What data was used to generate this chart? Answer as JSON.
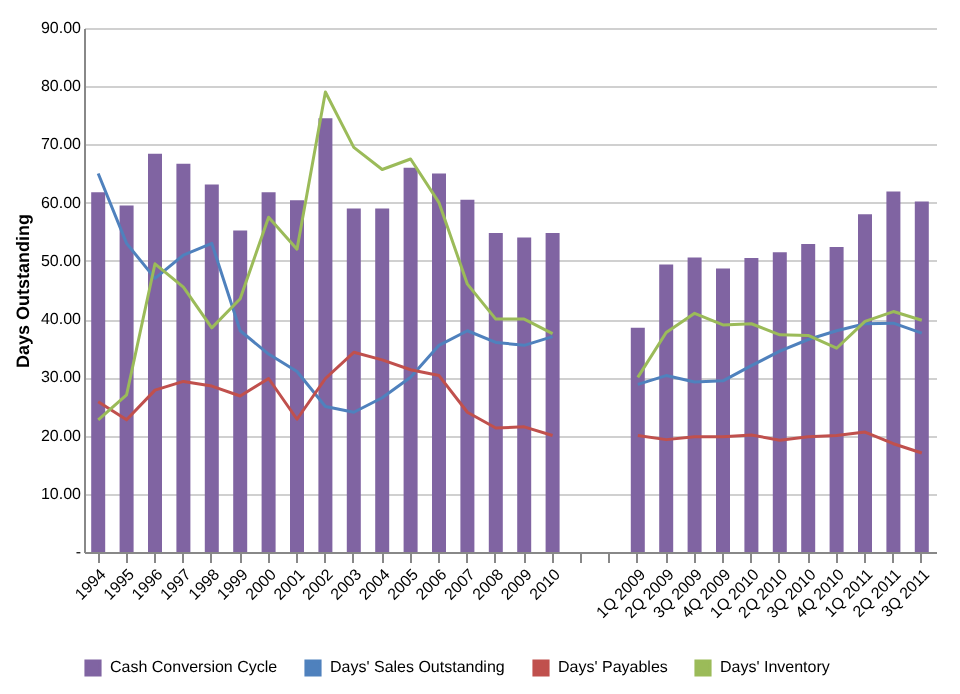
{
  "chart_data": {
    "type": "bar",
    "ylabel": "Days Outstanding",
    "categories": [
      "1994",
      "1995",
      "1996",
      "1997",
      "1998",
      "1999",
      "2000",
      "2001",
      "2002",
      "2003",
      "2004",
      "2005",
      "2006",
      "2007",
      "2008",
      "2009",
      "2010",
      null,
      null,
      "1Q 2009",
      "2Q 2009",
      "3Q 2009",
      "4Q 2009",
      "1Q 2010",
      "2Q 2010",
      "3Q 2010",
      "4Q 2010",
      "1Q 2011",
      "2Q 2011",
      "3Q 2011"
    ],
    "ylim": [
      0,
      90
    ],
    "yticks": [
      {
        "value": 0,
        "label": "-"
      },
      {
        "value": 10,
        "label": "10.00"
      },
      {
        "value": 20,
        "label": "20.00"
      },
      {
        "value": 30,
        "label": "30.00"
      },
      {
        "value": 40,
        "label": "40.00"
      },
      {
        "value": 50,
        "label": "50.00"
      },
      {
        "value": 60,
        "label": "60.00"
      },
      {
        "value": 70,
        "label": "70.00"
      },
      {
        "value": 80,
        "label": "80.00"
      },
      {
        "value": 90,
        "label": "90.00"
      }
    ],
    "grid": "y",
    "legend": "bottom",
    "series": [
      {
        "name": "Cash Conversion Cycle",
        "color": "#8064a2",
        "values": [
          61.8,
          59.5,
          68.4,
          66.7,
          63.1,
          55.2,
          61.8,
          60.4,
          74.5,
          59.0,
          59.0,
          66.0,
          65.0,
          60.5,
          54.8,
          54.0,
          54.8,
          null,
          null,
          38.5,
          49.4,
          50.6,
          48.7,
          50.5,
          51.5,
          52.9,
          52.4,
          58.0,
          61.9,
          60.2
        ]
      },
      {
        "name": "Days' Sales Outstanding",
        "type": "line",
        "color": "#4f81bd",
        "values": [
          65,
          53,
          47,
          51,
          53,
          38,
          34,
          31,
          25,
          24,
          26.5,
          30,
          35.5,
          38,
          36,
          35.5,
          37,
          null,
          null,
          28.8,
          30.3,
          29.2,
          29.4,
          32,
          34.5,
          36.5,
          38.0,
          39.2,
          39.3,
          37.6
        ]
      },
      {
        "name": "Days' Payables",
        "type": "line",
        "color": "#c0504d",
        "values": [
          25.8,
          22.7,
          27.8,
          29.3,
          28.5,
          26.8,
          29.8,
          22.8,
          29.8,
          34.3,
          33,
          31.3,
          30.3,
          24,
          21.3,
          21.5,
          20,
          null,
          null,
          20.0,
          19.3,
          19.8,
          19.8,
          20.1,
          19.2,
          19.8,
          20.0,
          20.6,
          18.6,
          17.0
        ]
      },
      {
        "name": "Days' Inventory",
        "type": "line",
        "color": "#9bbb59",
        "values": [
          22.7,
          27,
          49.5,
          45.5,
          38.5,
          43.5,
          57.5,
          52,
          79,
          69.5,
          65.7,
          67.5,
          60,
          46,
          40,
          40,
          37.5,
          null,
          null,
          30,
          37.7,
          41,
          39,
          39.2,
          37.3,
          37.2,
          35,
          39.6,
          41.3,
          39.8
        ]
      }
    ]
  }
}
